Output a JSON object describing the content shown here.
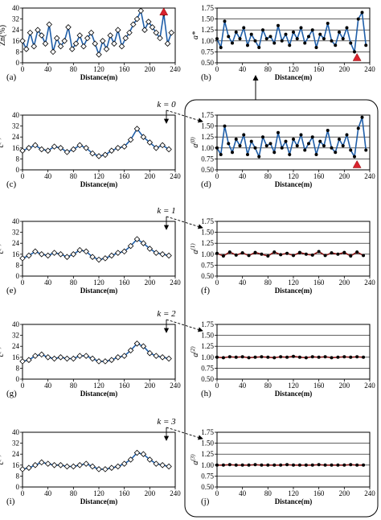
{
  "x_ticks": [
    "0",
    "40",
    "80",
    "120",
    "160",
    "200",
    "240"
  ],
  "xlabel": "Distance(m)",
  "chart_data": [
    {
      "id": "a",
      "type": "line",
      "panel_label": "(a)",
      "ylabel": "Zn(%)",
      "xlim": [
        0,
        240
      ],
      "ylim": [
        0,
        40
      ],
      "yticks": [
        "0",
        "8",
        "16",
        "24",
        "32",
        "40"
      ],
      "marker": "diamond",
      "marker_color": "#000000",
      "line_color": "#1f5ea8",
      "annotation": "red triangle near x=222 (peak)",
      "x": [
        0,
        6,
        12,
        18,
        24,
        30,
        36,
        42,
        48,
        54,
        60,
        66,
        72,
        78,
        84,
        90,
        96,
        102,
        108,
        114,
        120,
        126,
        132,
        138,
        144,
        150,
        156,
        162,
        168,
        174,
        180,
        186,
        192,
        198,
        204,
        210,
        216,
        222,
        228,
        234
      ],
      "y": [
        16,
        10,
        22,
        12,
        24,
        20,
        14,
        28,
        8,
        18,
        12,
        16,
        26,
        10,
        14,
        20,
        12,
        18,
        22,
        14,
        6,
        16,
        10,
        20,
        14,
        24,
        12,
        18,
        22,
        28,
        32,
        38,
        24,
        30,
        26,
        22,
        18,
        36,
        14,
        22
      ]
    },
    {
      "id": "b",
      "type": "line",
      "panel_label": "(b)",
      "ylabel": "a*",
      "xlim": [
        0,
        240
      ],
      "ylim": [
        0.5,
        1.75
      ],
      "yticks": [
        "0.50",
        "0.75",
        "1.00",
        "1.25",
        "1.50",
        "1.75"
      ],
      "marker": "circle",
      "marker_color": "#000000",
      "line_color": "#1f5ea8",
      "annotation": "red triangle near x=220 (low)",
      "x": [
        0,
        6,
        12,
        18,
        24,
        30,
        36,
        42,
        48,
        54,
        60,
        66,
        72,
        78,
        84,
        90,
        96,
        102,
        108,
        114,
        120,
        126,
        132,
        138,
        144,
        150,
        156,
        162,
        168,
        174,
        180,
        186,
        192,
        198,
        204,
        210,
        216,
        222,
        228,
        234
      ],
      "y": [
        1.05,
        0.85,
        1.45,
        1.1,
        0.95,
        1.2,
        1.05,
        1.3,
        0.9,
        1.15,
        1.0,
        0.85,
        1.25,
        1.05,
        1.1,
        0.95,
        1.35,
        1.0,
        1.15,
        0.9,
        1.2,
        1.05,
        1.3,
        0.95,
        1.1,
        1.25,
        0.85,
        1.15,
        1.05,
        1.4,
        1.0,
        0.9,
        1.2,
        1.05,
        1.3,
        0.95,
        0.75,
        1.5,
        1.65,
        0.9
      ]
    },
    {
      "id": "c",
      "type": "line",
      "panel_label": "(c)",
      "ylabel": "c(0)",
      "k_label": "k = 0",
      "xlim": [
        0,
        240
      ],
      "ylim": [
        0,
        40
      ],
      "yticks": [
        "0",
        "8",
        "16",
        "24",
        "32",
        "40"
      ],
      "marker": "diamond",
      "marker_color": "#000000",
      "line_color": "#1f5ea8",
      "x": [
        0,
        10,
        20,
        30,
        40,
        50,
        60,
        70,
        80,
        90,
        100,
        110,
        120,
        130,
        140,
        150,
        160,
        170,
        180,
        190,
        200,
        210,
        220,
        230
      ],
      "y": [
        14,
        16,
        18,
        15,
        14,
        17,
        16,
        13,
        15,
        18,
        16,
        12,
        10,
        11,
        14,
        16,
        17,
        22,
        30,
        24,
        20,
        16,
        18,
        15
      ]
    },
    {
      "id": "d",
      "type": "line",
      "panel_label": "(d)",
      "ylabel": "a(0)",
      "xlim": [
        0,
        240
      ],
      "ylim": [
        0.5,
        1.75
      ],
      "yticks": [
        "0.50",
        "0.75",
        "1.00",
        "1.25",
        "1.50",
        "1.75"
      ],
      "marker": "circle",
      "marker_color": "#000000",
      "line_color": "#1f5ea8",
      "annotation": "red triangle near x=222 (low)",
      "x": [
        0,
        6,
        12,
        18,
        24,
        30,
        36,
        42,
        48,
        54,
        60,
        66,
        72,
        78,
        84,
        90,
        96,
        102,
        108,
        114,
        120,
        126,
        132,
        138,
        144,
        150,
        156,
        162,
        168,
        174,
        180,
        186,
        192,
        198,
        204,
        210,
        216,
        222,
        228,
        234
      ],
      "y": [
        1.0,
        0.85,
        1.5,
        1.1,
        0.9,
        1.2,
        1.05,
        1.3,
        0.85,
        1.15,
        1.0,
        0.8,
        1.25,
        1.05,
        1.1,
        0.9,
        1.35,
        1.0,
        1.15,
        0.85,
        1.2,
        1.05,
        1.3,
        0.95,
        1.1,
        1.25,
        0.85,
        1.15,
        1.05,
        1.4,
        1.0,
        0.9,
        1.2,
        1.05,
        1.3,
        0.95,
        0.8,
        1.45,
        1.7,
        0.95
      ]
    },
    {
      "id": "e",
      "type": "line",
      "panel_label": "(e)",
      "ylabel": "c(1)",
      "k_label": "k = 1",
      "xlim": [
        0,
        240
      ],
      "ylim": [
        0,
        40
      ],
      "yticks": [
        "0",
        "8",
        "16",
        "24",
        "32",
        "40"
      ],
      "marker": "diamond",
      "marker_color": "#000000",
      "line_color": "#1f5ea8",
      "x": [
        0,
        10,
        20,
        30,
        40,
        50,
        60,
        70,
        80,
        90,
        100,
        110,
        120,
        130,
        140,
        150,
        160,
        170,
        180,
        190,
        200,
        210,
        220,
        230
      ],
      "y": [
        13,
        15,
        18,
        16,
        15,
        17,
        16,
        14,
        16,
        19,
        18,
        14,
        12,
        13,
        15,
        17,
        18,
        22,
        27,
        24,
        20,
        17,
        16,
        15
      ]
    },
    {
      "id": "f",
      "type": "line",
      "panel_label": "(f)",
      "ylabel": "a(1)",
      "xlim": [
        0,
        240
      ],
      "ylim": [
        0.5,
        1.75
      ],
      "yticks": [
        "0.50",
        "0.75",
        "1.00",
        "1.25",
        "1.50",
        "1.75"
      ],
      "marker": "circle",
      "marker_color": "#000000",
      "line_color": "#8b1a1a",
      "x": [
        0,
        10,
        20,
        30,
        40,
        50,
        60,
        70,
        80,
        90,
        100,
        110,
        120,
        130,
        140,
        150,
        160,
        170,
        180,
        190,
        200,
        210,
        220,
        230
      ],
      "y": [
        1.02,
        0.96,
        1.05,
        0.98,
        1.03,
        0.97,
        1.04,
        1.0,
        0.96,
        1.05,
        0.99,
        1.02,
        0.97,
        1.04,
        1.0,
        0.98,
        1.06,
        0.97,
        1.03,
        1.0,
        1.04,
        0.96,
        1.05,
        0.97
      ]
    },
    {
      "id": "g",
      "type": "line",
      "panel_label": "(g)",
      "ylabel": "c(2)",
      "k_label": "k = 2",
      "xlim": [
        0,
        240
      ],
      "ylim": [
        0,
        40
      ],
      "yticks": [
        "0",
        "8",
        "16",
        "24",
        "32",
        "40"
      ],
      "marker": "diamond",
      "marker_color": "#000000",
      "line_color": "#1f5ea8",
      "x": [
        0,
        10,
        20,
        30,
        40,
        50,
        60,
        70,
        80,
        90,
        100,
        110,
        120,
        130,
        140,
        150,
        160,
        170,
        180,
        190,
        200,
        210,
        220,
        230
      ],
      "y": [
        13,
        14,
        17,
        18,
        16,
        15,
        16,
        15,
        15,
        17,
        17,
        15,
        13,
        13,
        14,
        16,
        17,
        21,
        26,
        24,
        19,
        17,
        16,
        15
      ]
    },
    {
      "id": "h",
      "type": "line",
      "panel_label": "(h)",
      "ylabel": "a(2)",
      "xlim": [
        0,
        240
      ],
      "ylim": [
        0.5,
        1.75
      ],
      "yticks": [
        "0.50",
        "0.75",
        "1.00",
        "1.25",
        "1.50",
        "1.75"
      ],
      "marker": "circle",
      "marker_color": "#000000",
      "line_color": "#8b1a1a",
      "x": [
        0,
        10,
        20,
        30,
        40,
        50,
        60,
        70,
        80,
        90,
        100,
        110,
        120,
        130,
        140,
        150,
        160,
        170,
        180,
        190,
        200,
        210,
        220,
        230
      ],
      "y": [
        1.0,
        0.99,
        1.01,
        1.0,
        1.01,
        0.99,
        1.0,
        1.01,
        1.0,
        0.99,
        1.01,
        1.0,
        1.02,
        1.0,
        0.99,
        1.01,
        1.0,
        1.01,
        0.99,
        1.0,
        1.01,
        1.0,
        1.01,
        1.0
      ]
    },
    {
      "id": "i",
      "type": "line",
      "panel_label": "(i)",
      "ylabel": "c(3)",
      "k_label": "k = 3",
      "xlim": [
        0,
        240
      ],
      "ylim": [
        0,
        40
      ],
      "yticks": [
        "0",
        "8",
        "16",
        "24",
        "32",
        "40"
      ],
      "marker": "diamond",
      "marker_color": "#000000",
      "line_color": "#1f5ea8",
      "x": [
        0,
        10,
        20,
        30,
        40,
        50,
        60,
        70,
        80,
        90,
        100,
        110,
        120,
        130,
        140,
        150,
        160,
        170,
        180,
        190,
        200,
        210,
        220,
        230
      ],
      "y": [
        13,
        14,
        16,
        18,
        17,
        16,
        16,
        15,
        15,
        16,
        17,
        15,
        13,
        13,
        14,
        15,
        17,
        20,
        25,
        24,
        20,
        17,
        16,
        15
      ]
    },
    {
      "id": "j",
      "type": "line",
      "panel_label": "(j)",
      "ylabel": "a(3)",
      "xlim": [
        0,
        240
      ],
      "ylim": [
        0.5,
        1.75
      ],
      "yticks": [
        "0.50",
        "0.75",
        "1.00",
        "1.25",
        "1.50",
        "1.75"
      ],
      "marker": "circle",
      "marker_color": "#000000",
      "line_color": "#8b1a1a",
      "x": [
        0,
        10,
        20,
        30,
        40,
        50,
        60,
        70,
        80,
        90,
        100,
        110,
        120,
        130,
        140,
        150,
        160,
        170,
        180,
        190,
        200,
        210,
        220,
        230
      ],
      "y": [
        1.0,
        1.0,
        1.01,
        1.0,
        1.0,
        1.0,
        1.01,
        1.0,
        1.0,
        1.0,
        1.0,
        1.01,
        1.0,
        1.0,
        1.0,
        1.0,
        1.01,
        1.0,
        1.0,
        1.0,
        1.0,
        1.01,
        1.0,
        1.0
      ]
    }
  ]
}
